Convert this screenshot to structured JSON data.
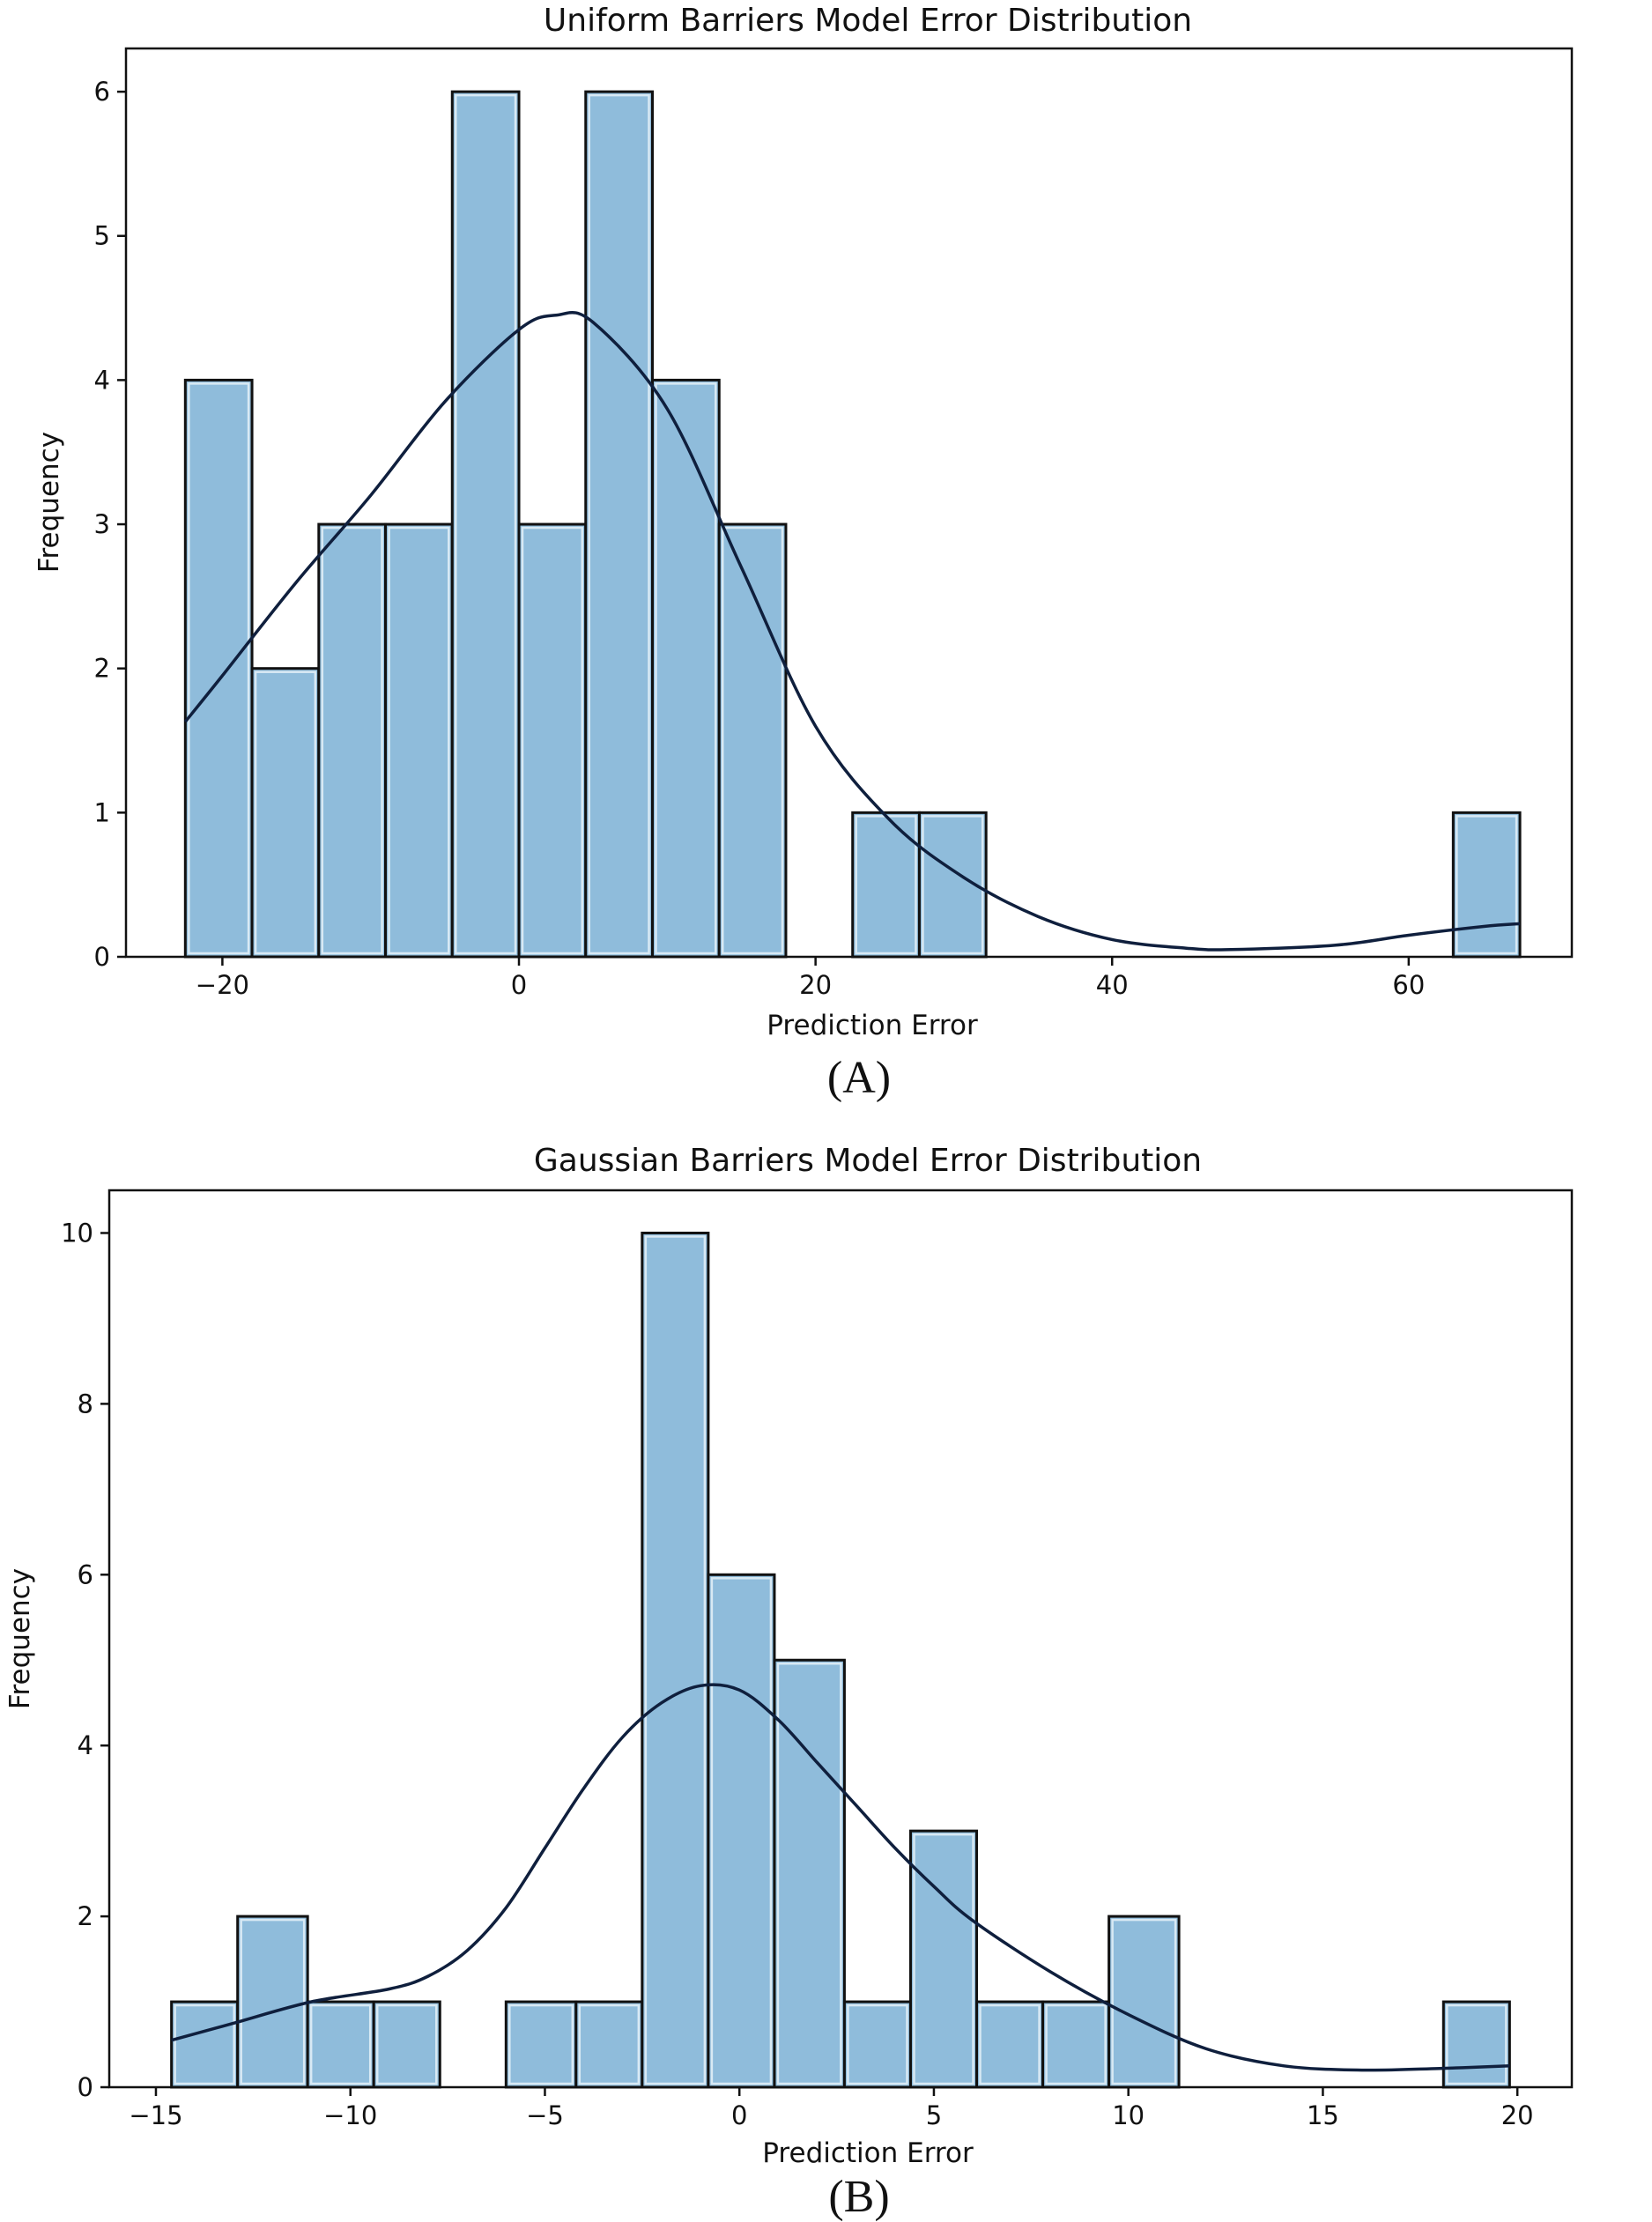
{
  "chart_data": [
    {
      "type": "histogram",
      "title": "Uniform Barriers Model Error Distribution",
      "xlabel": "Prediction Error",
      "ylabel": "Frequency",
      "caption": "(A)",
      "xlim": [
        -26.5,
        71
      ],
      "ylim": [
        0,
        6.3
      ],
      "xticks": [
        -20,
        0,
        20,
        40,
        60
      ],
      "yticks": [
        0,
        1,
        2,
        3,
        4,
        5,
        6
      ],
      "bins": [
        {
          "x0": -22.5,
          "x1": -18.0,
          "count": 4
        },
        {
          "x0": -18.0,
          "x1": -13.5,
          "count": 2
        },
        {
          "x0": -13.5,
          "x1": -9.0,
          "count": 3
        },
        {
          "x0": -9.0,
          "x1": -4.5,
          "count": 3
        },
        {
          "x0": -4.5,
          "x1": 0.0,
          "count": 6
        },
        {
          "x0": 0.0,
          "x1": 4.5,
          "count": 3
        },
        {
          "x0": 4.5,
          "x1": 9.0,
          "count": 6
        },
        {
          "x0": 9.0,
          "x1": 13.5,
          "count": 4
        },
        {
          "x0": 13.5,
          "x1": 18.0,
          "count": 3
        },
        {
          "x0": 22.5,
          "x1": 27.0,
          "count": 1
        },
        {
          "x0": 27.0,
          "x1": 31.5,
          "count": 1
        },
        {
          "x0": 63.0,
          "x1": 67.5,
          "count": 1
        }
      ],
      "kde": [
        [
          -22.5,
          1.63
        ],
        [
          -20,
          1.95
        ],
        [
          -15,
          2.6
        ],
        [
          -10,
          3.2
        ],
        [
          -5,
          3.85
        ],
        [
          0,
          4.35
        ],
        [
          2.5,
          4.45
        ],
        [
          5,
          4.4
        ],
        [
          10,
          3.8
        ],
        [
          15,
          2.7
        ],
        [
          20,
          1.6
        ],
        [
          25,
          0.95
        ],
        [
          30,
          0.55
        ],
        [
          35,
          0.28
        ],
        [
          40,
          0.12
        ],
        [
          45,
          0.06
        ],
        [
          48,
          0.05
        ],
        [
          55,
          0.08
        ],
        [
          60,
          0.15
        ],
        [
          65,
          0.21
        ],
        [
          67.5,
          0.23
        ]
      ],
      "colors": {
        "bar": "#8fbcdb",
        "edge": "#111111",
        "kde": "#0f1f3d"
      }
    },
    {
      "type": "histogram",
      "title": "Gaussian Barriers Model Error Distribution",
      "xlabel": "Prediction Error",
      "ylabel": "Frequency",
      "caption": "(B)",
      "xlim": [
        -16.2,
        21.4
      ],
      "ylim": [
        0,
        10.5
      ],
      "xticks": [
        -15,
        -10,
        -5,
        0,
        5,
        10,
        15,
        20
      ],
      "yticks": [
        0,
        2,
        4,
        6,
        8,
        10
      ],
      "bins": [
        {
          "x0": -14.6,
          "x1": -12.9,
          "count": 1
        },
        {
          "x0": -12.9,
          "x1": -11.1,
          "count": 2
        },
        {
          "x0": -11.1,
          "x1": -9.4,
          "count": 1
        },
        {
          "x0": -9.4,
          "x1": -7.7,
          "count": 1
        },
        {
          "x0": -6.0,
          "x1": -4.2,
          "count": 1
        },
        {
          "x0": -4.2,
          "x1": -2.5,
          "count": 1
        },
        {
          "x0": -2.5,
          "x1": -0.8,
          "count": 10
        },
        {
          "x0": -0.8,
          "x1": 0.9,
          "count": 6
        },
        {
          "x0": 0.9,
          "x1": 2.7,
          "count": 5
        },
        {
          "x0": 2.7,
          "x1": 4.4,
          "count": 1
        },
        {
          "x0": 4.4,
          "x1": 6.1,
          "count": 3
        },
        {
          "x0": 6.1,
          "x1": 7.8,
          "count": 1
        },
        {
          "x0": 7.8,
          "x1": 9.5,
          "count": 1
        },
        {
          "x0": 9.5,
          "x1": 11.3,
          "count": 2
        },
        {
          "x0": 18.1,
          "x1": 19.8,
          "count": 1
        }
      ],
      "kde": [
        [
          -14.6,
          0.55
        ],
        [
          -13,
          0.75
        ],
        [
          -11,
          1.0
        ],
        [
          -9,
          1.15
        ],
        [
          -8,
          1.3
        ],
        [
          -7,
          1.6
        ],
        [
          -6,
          2.1
        ],
        [
          -5,
          2.8
        ],
        [
          -4,
          3.5
        ],
        [
          -3,
          4.1
        ],
        [
          -2,
          4.5
        ],
        [
          -1,
          4.7
        ],
        [
          0,
          4.65
        ],
        [
          1,
          4.3
        ],
        [
          2,
          3.8
        ],
        [
          3,
          3.3
        ],
        [
          4,
          2.8
        ],
        [
          5,
          2.35
        ],
        [
          6,
          1.95
        ],
        [
          8,
          1.35
        ],
        [
          10,
          0.85
        ],
        [
          12,
          0.45
        ],
        [
          14,
          0.25
        ],
        [
          16,
          0.2
        ],
        [
          18,
          0.22
        ],
        [
          19.8,
          0.25
        ]
      ],
      "colors": {
        "bar": "#8fbcdb",
        "edge": "#111111",
        "kde": "#0f1f3d"
      }
    }
  ]
}
